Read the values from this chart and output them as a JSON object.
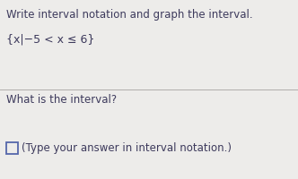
{
  "title_line1": "Write interval notation and graph the interval.",
  "set_notation": "{x|−5 < x ≤ 6}",
  "question": "What is the interval?",
  "answer_hint": "(Type your answer in interval notation.)",
  "bg_color": "#edecea",
  "text_color": "#3d3a5c",
  "divider_color": "#b0aeab",
  "box_color": "#5566aa",
  "title_fontsize": 8.5,
  "notation_fontsize": 9.0,
  "body_fontsize": 8.5
}
